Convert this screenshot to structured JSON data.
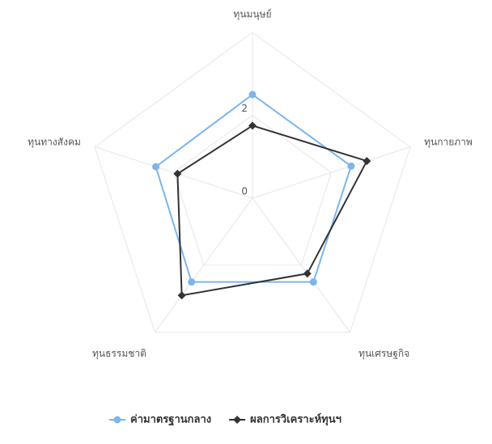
{
  "chart_data": {
    "type": "radar",
    "categories": [
      "ทุนมนุษย์",
      "ทุนกายภาพ",
      "ทุนเศรษฐกิจ",
      "ทุนธรรมชาติ",
      "ทุนทางสังคม"
    ],
    "series": [
      {
        "name": "ค่ามาตรฐานกลาง",
        "color": "#7cb5ec",
        "values": [
          2.5,
          2.5,
          2.5,
          2.5,
          2.45
        ]
      },
      {
        "name": "ผลการวิเคราะห์ทุนฯ",
        "color": "#333333",
        "values": [
          1.75,
          2.9,
          2.25,
          2.9,
          1.9
        ]
      }
    ],
    "ylim": [
      0,
      4
    ],
    "yticks": [
      0,
      2
    ],
    "grid": true,
    "legend": "bottom"
  }
}
